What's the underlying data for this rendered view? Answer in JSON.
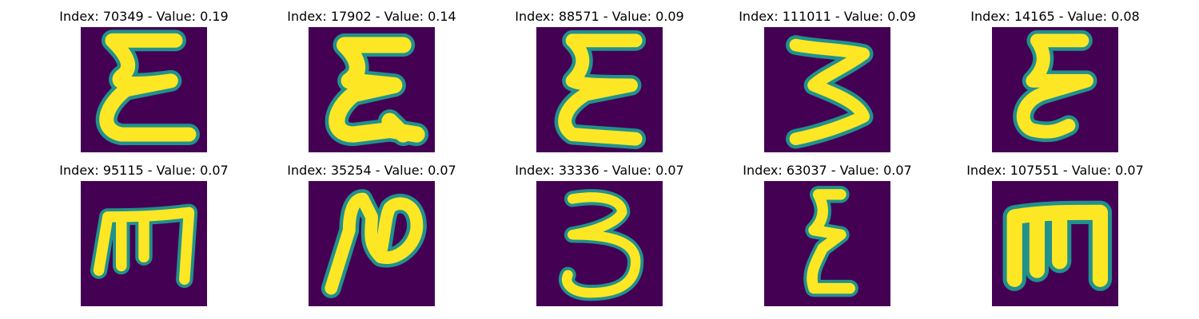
{
  "figure": {
    "background": "#ffffff",
    "colormap": [
      "#440154",
      "#3b528b",
      "#21918c",
      "#5ec962",
      "#fde725"
    ],
    "panels": [
      {
        "title": "Index: 70349 - Value: 0.19",
        "glyph": "epsilon"
      },
      {
        "title": "Index: 17902 - Value: 0.14",
        "glyph": "epsilon"
      },
      {
        "title": "Index: 88571 - Value: 0.09",
        "glyph": "epsilon"
      },
      {
        "title": "Index: 111011 - Value: 0.09",
        "glyph": "three"
      },
      {
        "title": "Index: 14165 - Value: 0.08",
        "glyph": "epsilon"
      },
      {
        "title": "Index: 95115 - Value: 0.07",
        "glyph": "m"
      },
      {
        "title": "Index: 35254 - Value: 0.07",
        "glyph": "cursive-n"
      },
      {
        "title": "Index: 33336 - Value: 0.07",
        "glyph": "three"
      },
      {
        "title": "Index: 63037 - Value: 0.07",
        "glyph": "epsilon"
      },
      {
        "title": "Index: 107551 - Value: 0.07",
        "glyph": "m"
      }
    ]
  }
}
